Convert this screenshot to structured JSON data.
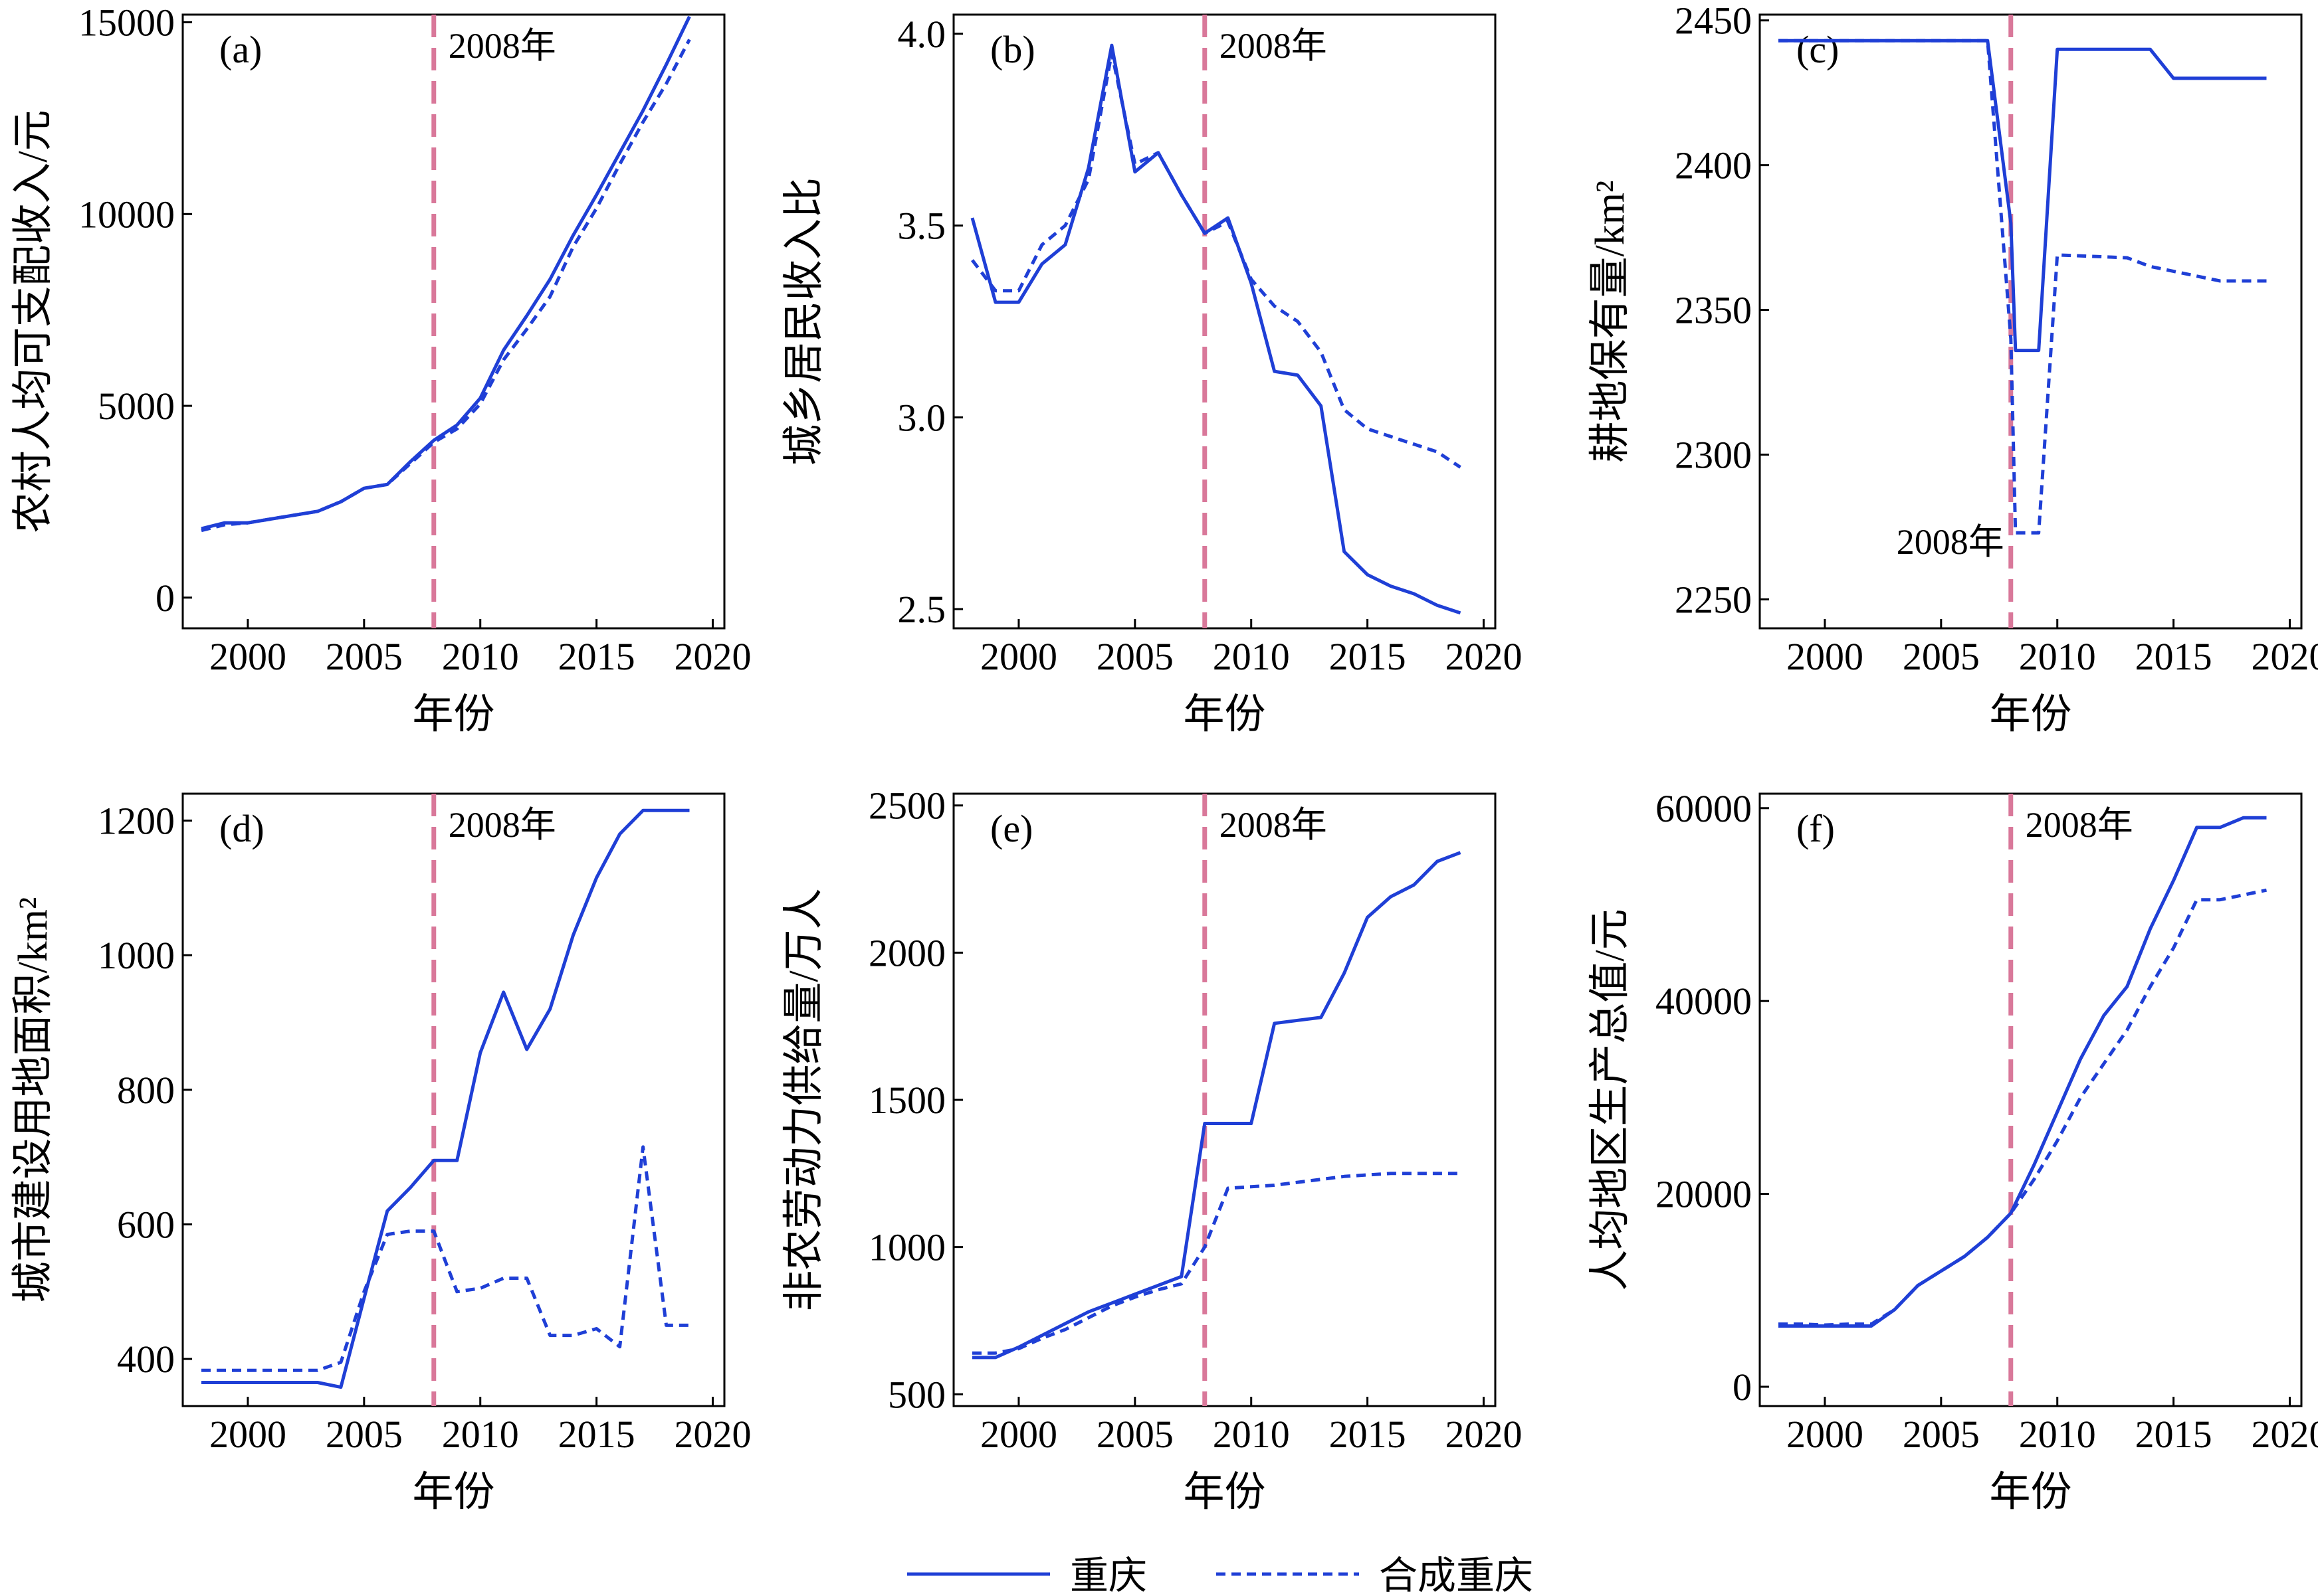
{
  "legend": {
    "actual_label": "重庆",
    "synthetic_label": "合成重庆"
  },
  "colors": {
    "series": "#1f3fd6",
    "event_line": "#d9789a",
    "axis": "#000000"
  },
  "event": {
    "year": 2008,
    "label": "2008年"
  },
  "chart_data": [
    {
      "type": "line",
      "panel_label": "(a)",
      "xlabel": "年份",
      "ylabel": "农村人均可支配收入/元",
      "xlim": [
        1997.2,
        2020.5
      ],
      "ylim": [
        -800,
        15200
      ],
      "xticks": [
        2000,
        2005,
        2010,
        2015,
        2020
      ],
      "yticks": [
        0,
        5000,
        10000,
        15000
      ],
      "annotation_pos": "top",
      "series": [
        {
          "name": "重庆",
          "style": "solid",
          "x": [
            1998,
            1999,
            2000,
            2001,
            2002,
            2003,
            2004,
            2005,
            2006,
            2007,
            2008,
            2009,
            2010,
            2011,
            2012,
            2013,
            2014,
            2015,
            2016,
            2017,
            2018,
            2019
          ],
          "y": [
            1800,
            1950,
            1950,
            2050,
            2150,
            2250,
            2500,
            2850,
            2950,
            3550,
            4100,
            4500,
            5200,
            6450,
            7350,
            8300,
            9450,
            10500,
            11600,
            12700,
            13900,
            15150
          ]
        },
        {
          "name": "合成重庆",
          "style": "dashed",
          "x": [
            1998,
            1999,
            2000,
            2001,
            2002,
            2003,
            2004,
            2005,
            2006,
            2007,
            2008,
            2009,
            2010,
            2011,
            2012,
            2013,
            2014,
            2015,
            2016,
            2017,
            2018,
            2019
          ],
          "y": [
            1750,
            1900,
            1950,
            2050,
            2150,
            2250,
            2500,
            2850,
            2950,
            3500,
            4050,
            4400,
            5050,
            6200,
            7000,
            7850,
            9150,
            10150,
            11300,
            12400,
            13400,
            14550
          ]
        }
      ]
    },
    {
      "type": "line",
      "panel_label": "(b)",
      "xlabel": "年份",
      "ylabel": "城乡居民收入比",
      "xlim": [
        1997.2,
        2020.5
      ],
      "ylim": [
        2.45,
        4.05
      ],
      "xticks": [
        2000,
        2005,
        2010,
        2015,
        2020
      ],
      "yticks": [
        2.5,
        3.0,
        3.5,
        4.0
      ],
      "annotation_pos": "top",
      "series": [
        {
          "name": "重庆",
          "style": "solid",
          "x": [
            1998,
            1999,
            2000,
            2001,
            2002,
            2003,
            2004,
            2005,
            2006,
            2007,
            2008,
            2009,
            2010,
            2011,
            2012,
            2013,
            2014,
            2015,
            2016,
            2017,
            2018,
            2019
          ],
          "y": [
            3.52,
            3.3,
            3.3,
            3.4,
            3.45,
            3.65,
            3.97,
            3.64,
            3.69,
            3.58,
            3.48,
            3.52,
            3.35,
            3.12,
            3.11,
            3.03,
            2.65,
            2.59,
            2.56,
            2.54,
            2.51,
            2.49
          ]
        },
        {
          "name": "合成重庆",
          "style": "dashed",
          "x": [
            1998,
            1999,
            2000,
            2001,
            2002,
            2003,
            2004,
            2005,
            2006,
            2007,
            2008,
            2009,
            2010,
            2011,
            2012,
            2013,
            2014,
            2015,
            2016,
            2017,
            2018,
            2019
          ],
          "y": [
            3.41,
            3.33,
            3.33,
            3.45,
            3.5,
            3.62,
            3.95,
            3.66,
            3.69,
            3.58,
            3.48,
            3.51,
            3.36,
            3.29,
            3.25,
            3.17,
            3.02,
            2.97,
            2.95,
            2.93,
            2.91,
            2.87
          ]
        }
      ]
    },
    {
      "type": "line",
      "panel_label": "(c)",
      "xlabel": "年份",
      "ylabel": "耕地保有量/km²",
      "xlim": [
        1997.2,
        2020.5
      ],
      "ylim": [
        2240,
        2452
      ],
      "xticks": [
        2000,
        2005,
        2010,
        2015,
        2020
      ],
      "yticks": [
        2250,
        2300,
        2350,
        2400,
        2450
      ],
      "annotation_pos": "bottom",
      "series": [
        {
          "name": "重庆",
          "style": "solid",
          "x": [
            1998,
            2007,
            2008,
            2008.2,
            2009,
            2009.2,
            2010,
            2014,
            2015,
            2019
          ],
          "y": [
            2443,
            2443,
            2380,
            2336,
            2336,
            2336,
            2440,
            2440,
            2430,
            2430
          ]
        },
        {
          "name": "合成重庆",
          "style": "dashed",
          "x": [
            1998,
            2007,
            2008,
            2008.2,
            2009,
            2009.2,
            2010,
            2013,
            2014,
            2017,
            2019
          ],
          "y": [
            2443,
            2443,
            2340,
            2273,
            2273,
            2273,
            2369,
            2368,
            2365,
            2360,
            2360
          ]
        }
      ]
    },
    {
      "type": "line",
      "panel_label": "(d)",
      "xlabel": "年份",
      "ylabel": "城市建设用地面积/km²",
      "xlim": [
        1997.2,
        2020.5
      ],
      "ylim": [
        330,
        1240
      ],
      "xticks": [
        2000,
        2005,
        2010,
        2015,
        2020
      ],
      "yticks": [
        400,
        600,
        800,
        1000,
        1200
      ],
      "annotation_pos": "top",
      "series": [
        {
          "name": "重庆",
          "style": "solid",
          "x": [
            1998,
            2003,
            2004,
            2005,
            2006,
            2007,
            2008,
            2009,
            2010,
            2011,
            2012,
            2013,
            2014,
            2015,
            2016,
            2017,
            2018,
            2019
          ],
          "y": [
            365,
            365,
            358,
            490,
            620,
            655,
            695,
            695,
            855,
            945,
            860,
            920,
            1030,
            1115,
            1180,
            1215,
            1215,
            1215
          ]
        },
        {
          "name": "合成重庆",
          "style": "dashed",
          "x": [
            1998,
            2003,
            2004,
            2005,
            2006,
            2007,
            2008,
            2009,
            2010,
            2011,
            2012,
            2013,
            2014,
            2015,
            2016,
            2017,
            2018,
            2019
          ],
          "y": [
            383,
            383,
            395,
            500,
            585,
            590,
            590,
            500,
            505,
            520,
            520,
            435,
            435,
            445,
            418,
            715,
            450,
            450
          ]
        }
      ]
    },
    {
      "type": "line",
      "panel_label": "(e)",
      "xlabel": "年份",
      "ylabel": "非农劳动力供给量/万人",
      "xlim": [
        1997.2,
        2020.5
      ],
      "ylim": [
        460,
        2540
      ],
      "xticks": [
        2000,
        2005,
        2010,
        2015,
        2020
      ],
      "yticks": [
        500,
        1000,
        1500,
        2000,
        2500
      ],
      "annotation_pos": "top",
      "series": [
        {
          "name": "重庆",
          "style": "solid",
          "x": [
            1998,
            1999,
            2000,
            2001,
            2002,
            2003,
            2004,
            2005,
            2006,
            2007,
            2008,
            2009,
            2010,
            2011,
            2012,
            2013,
            2014,
            2015,
            2016,
            2017,
            2018,
            2019
          ],
          "y": [
            625,
            625,
            660,
            700,
            740,
            780,
            810,
            840,
            870,
            900,
            1420,
            1420,
            1420,
            1760,
            1770,
            1780,
            1930,
            2120,
            2190,
            2230,
            2310,
            2340
          ]
        },
        {
          "name": "合成重庆",
          "style": "dashed",
          "x": [
            1998,
            1999,
            2000,
            2001,
            2002,
            2003,
            2004,
            2005,
            2006,
            2007,
            2008,
            2009,
            2010,
            2011,
            2012,
            2013,
            2014,
            2015,
            2016,
            2017,
            2018,
            2019
          ],
          "y": [
            640,
            640,
            655,
            690,
            720,
            760,
            800,
            830,
            855,
            875,
            1000,
            1200,
            1205,
            1210,
            1220,
            1230,
            1240,
            1245,
            1250,
            1250,
            1250,
            1250
          ]
        }
      ]
    },
    {
      "type": "line",
      "panel_label": "(f)",
      "xlabel": "年份",
      "ylabel": "人均地区生产总值/元",
      "xlim": [
        1997.2,
        2020.5
      ],
      "ylim": [
        -2000,
        61500
      ],
      "xticks": [
        2000,
        2005,
        2010,
        2015,
        2020
      ],
      "yticks": [
        0,
        20000,
        40000,
        60000
      ],
      "annotation_pos": "top",
      "series": [
        {
          "name": "重庆",
          "style": "solid",
          "x": [
            1998,
            1999,
            2000,
            2001,
            2002,
            2003,
            2004,
            2005,
            2006,
            2007,
            2008,
            2009,
            2010,
            2011,
            2012,
            2013,
            2014,
            2015,
            2016,
            2017,
            2018,
            2019
          ],
          "y": [
            6300,
            6300,
            6300,
            6300,
            6300,
            8000,
            10500,
            12000,
            13500,
            15500,
            18000,
            23000,
            28500,
            34000,
            38500,
            41500,
            47500,
            52500,
            58000,
            58000,
            59000,
            59000
          ]
        },
        {
          "name": "合成重庆",
          "style": "dashed",
          "x": [
            1998,
            1999,
            2000,
            2001,
            2002,
            2003,
            2004,
            2005,
            2006,
            2007,
            2008,
            2009,
            2010,
            2011,
            2012,
            2013,
            2014,
            2015,
            2016,
            2017,
            2018,
            2019
          ],
          "y": [
            6500,
            6500,
            6400,
            6500,
            6500,
            8000,
            10500,
            12000,
            13500,
            15500,
            18000,
            21500,
            25500,
            30000,
            33500,
            37000,
            41500,
            45500,
            50500,
            50500,
            51000,
            51500
          ]
        }
      ]
    }
  ]
}
